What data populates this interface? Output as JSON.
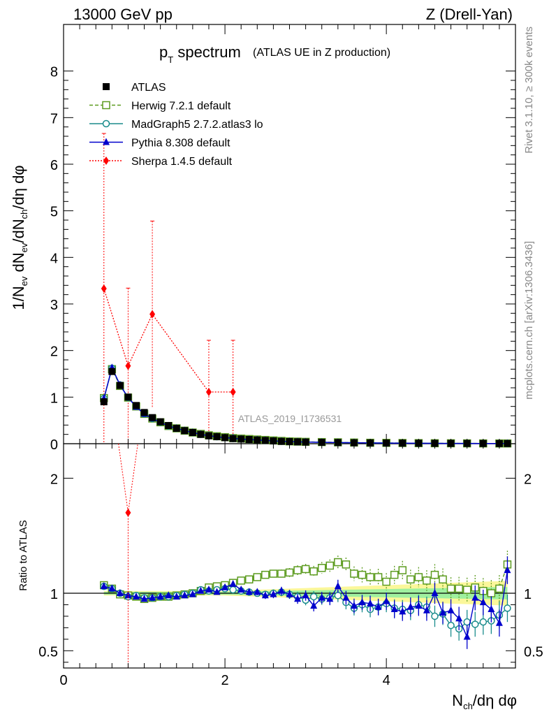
{
  "header": {
    "left": "13000 GeV pp",
    "right": "Z (Drell-Yan)"
  },
  "side_labels": {
    "rivet": "Rivet 3.1.10, ≥ 300k events",
    "mcplots": "mcplots.cern.ch [arXiv:1306.3436]"
  },
  "watermark": "ATLAS_2019_I1736531",
  "chart_data": [
    {
      "panel": "main",
      "type": "scatter",
      "title": "p",
      "title_sub": "T",
      "title_main": "spectrum",
      "title_extra": "(ATLAS UE in Z production)",
      "ylabel": "1/N_ev dN_ev/dN_ch/dη dφ",
      "xlim": [
        0,
        5.6
      ],
      "ylim": [
        0,
        9
      ],
      "yticks": [
        "0",
        "1",
        "2",
        "3",
        "4",
        "5",
        "6",
        "7",
        "8"
      ],
      "legend_position": "top-left",
      "series": [
        {
          "name": "ATLAS",
          "color": "#000000",
          "marker": "square-filled",
          "x": [
            0.5,
            0.6,
            0.7,
            0.8,
            0.9,
            1.0,
            1.1,
            1.2,
            1.3,
            1.4,
            1.5,
            1.6,
            1.7,
            1.8,
            1.9,
            2.0,
            2.1,
            2.2,
            2.3,
            2.4,
            2.5,
            2.6,
            2.7,
            2.8,
            2.9,
            3.0,
            3.2,
            3.4,
            3.6,
            3.8,
            4.0,
            4.2,
            4.4,
            4.6,
            4.8,
            5.0,
            5.2,
            5.4,
            5.5
          ],
          "y": [
            0.9,
            1.55,
            1.25,
            1.0,
            0.82,
            0.67,
            0.56,
            0.47,
            0.39,
            0.33,
            0.28,
            0.24,
            0.2,
            0.17,
            0.15,
            0.13,
            0.11,
            0.1,
            0.09,
            0.08,
            0.07,
            0.06,
            0.05,
            0.045,
            0.04,
            0.035,
            0.03,
            0.025,
            0.02,
            0.017,
            0.015,
            0.012,
            0.01,
            0.008,
            0.007,
            0.006,
            0.005,
            0.004,
            0.004
          ]
        },
        {
          "name": "Herwig 7.2.1 default",
          "color": "#5c9b1f",
          "marker": "square-open",
          "line": "dashed",
          "x": [
            0.5,
            0.6,
            0.7,
            0.8,
            0.9,
            1.0,
            1.1,
            1.2,
            1.3,
            1.4,
            1.5,
            1.6,
            1.7,
            1.8,
            1.9,
            2.0,
            2.1,
            2.2,
            2.3,
            2.4,
            2.5,
            2.6,
            2.7,
            2.8,
            2.9,
            3.0,
            3.2,
            3.4,
            3.6,
            3.8,
            4.0,
            4.2,
            4.4,
            4.6,
            4.8,
            5.0,
            5.2,
            5.4,
            5.5
          ],
          "y": [
            0.98,
            1.6,
            1.24,
            0.99,
            0.8,
            0.64,
            0.54,
            0.46,
            0.38,
            0.33,
            0.28,
            0.24,
            0.21,
            0.18,
            0.16,
            0.14,
            0.12,
            0.11,
            0.1,
            0.09,
            0.08,
            0.07,
            0.06,
            0.05,
            0.045,
            0.04,
            0.035,
            0.03,
            0.025,
            0.02,
            0.018,
            0.015,
            0.012,
            0.01,
            0.009,
            0.007,
            0.006,
            0.005,
            0.005
          ]
        },
        {
          "name": "MadGraph5 2.7.2.atlas3 lo",
          "color": "#1a8c8c",
          "marker": "circle-open",
          "line": "solid",
          "x": [
            0.5,
            0.6,
            0.7,
            0.8,
            0.9,
            1.0,
            1.1,
            1.2,
            1.3,
            1.4,
            1.5,
            1.6,
            1.7,
            1.8,
            1.9,
            2.0,
            2.1,
            2.2,
            2.3,
            2.4,
            2.5,
            2.6,
            2.7,
            2.8,
            2.9,
            3.0,
            3.2,
            3.4,
            3.6,
            3.8,
            4.0,
            4.2,
            4.4,
            4.6,
            4.8,
            5.0,
            5.2,
            5.4,
            5.5
          ],
          "y": [
            0.97,
            1.62,
            1.26,
            0.99,
            0.8,
            0.64,
            0.54,
            0.46,
            0.38,
            0.33,
            0.28,
            0.24,
            0.2,
            0.17,
            0.15,
            0.13,
            0.11,
            0.1,
            0.09,
            0.08,
            0.07,
            0.06,
            0.05,
            0.045,
            0.04,
            0.035,
            0.03,
            0.025,
            0.02,
            0.016,
            0.014,
            0.011,
            0.009,
            0.007,
            0.006,
            0.005,
            0.004,
            0.003,
            0.003
          ]
        },
        {
          "name": "Pythia 8.308 default",
          "color": "#0000cc",
          "marker": "triangle-filled",
          "line": "solid",
          "x": [
            0.5,
            0.6,
            0.7,
            0.8,
            0.9,
            1.0,
            1.1,
            1.2,
            1.3,
            1.4,
            1.5,
            1.6,
            1.7,
            1.8,
            1.9,
            2.0,
            2.1,
            2.2,
            2.3,
            2.4,
            2.5,
            2.6,
            2.7,
            2.8,
            2.9,
            3.0,
            3.2,
            3.4,
            3.6,
            3.8,
            4.0,
            4.2,
            4.4,
            4.6,
            4.8,
            5.0,
            5.2,
            5.4,
            5.5
          ],
          "y": [
            0.97,
            1.63,
            1.26,
            0.99,
            0.79,
            0.64,
            0.54,
            0.46,
            0.38,
            0.33,
            0.28,
            0.24,
            0.2,
            0.17,
            0.15,
            0.13,
            0.12,
            0.1,
            0.09,
            0.08,
            0.07,
            0.06,
            0.05,
            0.045,
            0.04,
            0.035,
            0.03,
            0.025,
            0.02,
            0.016,
            0.014,
            0.011,
            0.009,
            0.007,
            0.006,
            0.005,
            0.004,
            0.003,
            0.004
          ]
        },
        {
          "name": "Sherpa 1.4.5 default",
          "color": "#ff0000",
          "marker": "diamond-filled",
          "line": "dotted",
          "x": [
            0.5,
            0.8,
            1.1,
            1.8,
            2.1
          ],
          "y": [
            3.33,
            1.67,
            2.78,
            1.11,
            1.11
          ],
          "err": [
            3.33,
            1.67,
            2.0,
            1.11,
            1.11
          ]
        }
      ]
    },
    {
      "panel": "ratio",
      "type": "scatter",
      "ylabel": "Ratio to ATLAS",
      "xlabel": "N_ch/dη dφ",
      "xlim": [
        0,
        5.6
      ],
      "ylim": [
        0.35,
        2.3
      ],
      "yticks_left": [
        "0.5",
        "1",
        "2"
      ],
      "yticks_right": [
        "0.5",
        "1",
        "2"
      ],
      "xticks": [
        "0",
        "2",
        "4"
      ],
      "reference": 1,
      "x": [
        0.5,
        0.6,
        0.7,
        0.8,
        0.9,
        1.0,
        1.1,
        1.2,
        1.3,
        1.4,
        1.5,
        1.6,
        1.7,
        1.8,
        1.9,
        2.0,
        2.1,
        2.2,
        2.3,
        2.4,
        2.5,
        2.6,
        2.7,
        2.8,
        2.9,
        3.0,
        3.1,
        3.2,
        3.3,
        3.4,
        3.5,
        3.6,
        3.7,
        3.8,
        3.9,
        4.0,
        4.1,
        4.2,
        4.3,
        4.4,
        4.5,
        4.6,
        4.7,
        4.8,
        4.9,
        5.0,
        5.1,
        5.2,
        5.3,
        5.4,
        5.5
      ],
      "herwig": [
        1.07,
        1.04,
        0.99,
        0.98,
        0.97,
        0.95,
        0.96,
        0.97,
        0.97,
        0.98,
        0.99,
        1.0,
        1.02,
        1.05,
        1.06,
        1.07,
        1.09,
        1.11,
        1.12,
        1.14,
        1.16,
        1.17,
        1.17,
        1.18,
        1.2,
        1.21,
        1.19,
        1.22,
        1.24,
        1.27,
        1.25,
        1.17,
        1.16,
        1.14,
        1.14,
        1.1,
        1.16,
        1.2,
        1.12,
        1.14,
        1.11,
        1.16,
        1.12,
        1.04,
        1.04,
        1.03,
        1.05,
        1.02,
        1.0,
        1.04,
        1.25
      ],
      "madgraph": [
        1.06,
        1.04,
        1.0,
        0.97,
        0.98,
        0.96,
        0.96,
        0.97,
        0.97,
        0.98,
        0.99,
        1.0,
        1.03,
        1.02,
        1.03,
        1.04,
        1.03,
        1.02,
        1.01,
        1.0,
        0.99,
        1.0,
        1.01,
        0.99,
        0.97,
        0.94,
        0.97,
        0.95,
        0.96,
        0.98,
        0.92,
        0.87,
        0.9,
        0.86,
        0.88,
        0.91,
        0.87,
        0.86,
        0.85,
        0.9,
        0.88,
        0.8,
        0.82,
        0.72,
        0.69,
        0.75,
        0.73,
        0.75,
        0.76,
        0.81,
        0.87
      ],
      "pythia": [
        1.06,
        1.04,
        1.0,
        0.98,
        0.97,
        0.95,
        0.96,
        0.97,
        0.98,
        0.97,
        0.98,
        0.99,
        1.02,
        1.03,
        1.01,
        1.05,
        1.08,
        1.03,
        1.01,
        1.01,
        0.98,
        0.99,
        1.02,
        0.99,
        0.95,
        0.98,
        0.89,
        0.96,
        0.95,
        1.06,
        0.96,
        0.89,
        0.92,
        0.91,
        0.88,
        0.93,
        0.86,
        0.84,
        0.88,
        0.89,
        0.85,
        1.0,
        0.83,
        0.85,
        0.78,
        0.62,
        0.96,
        0.92,
        0.86,
        0.74,
        1.2
      ],
      "sherpa": {
        "x": [
          0.8
        ],
        "y": [
          1.7
        ],
        "err_low": 1.7,
        "err_high": 1.7
      }
    }
  ]
}
